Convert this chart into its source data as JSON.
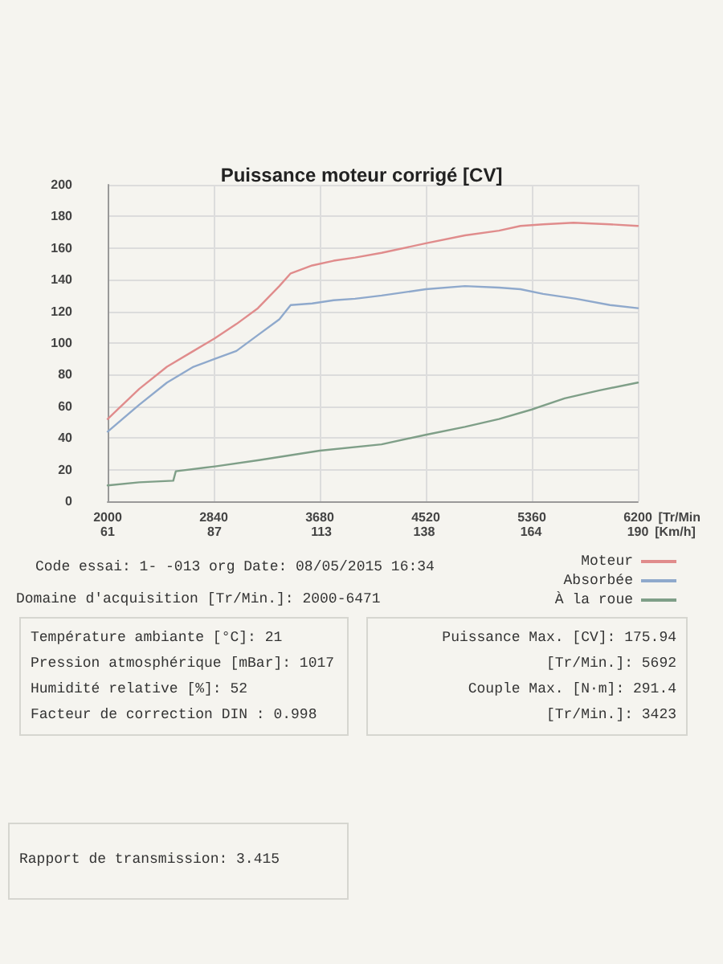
{
  "chart_data": {
    "type": "line",
    "title": "Puissance moteur corrigé [CV]",
    "xlabel": "[Tr/Min",
    "x2label": "[Km/h]",
    "xlim": [
      2000,
      6200
    ],
    "xticks": [
      2000,
      2840,
      3680,
      4520,
      5360,
      6200
    ],
    "x2lim": [
      61,
      190
    ],
    "x2ticks": [
      61,
      87,
      113,
      138,
      164,
      190
    ],
    "ylim": [
      0,
      200
    ],
    "yticks": [
      0,
      20,
      40,
      60,
      80,
      100,
      120,
      140,
      160,
      180,
      200
    ],
    "grid": true,
    "legend": "bottom right",
    "marker": "none",
    "line_style": "solid",
    "series": [
      {
        "name": "Moteur",
        "color": "#e08c8c",
        "x": [
          2000,
          2250,
          2470,
          2680,
          2850,
          3020,
          3190,
          3360,
          3450,
          3620,
          3790,
          3960,
          4170,
          4520,
          4830,
          5100,
          5270,
          5450,
          5690,
          5980,
          6200
        ],
        "values": [
          52,
          71,
          85,
          95,
          103,
          112,
          122,
          136,
          144,
          149,
          152,
          154,
          157,
          163,
          168,
          171,
          174,
          175,
          176,
          175,
          174
        ]
      },
      {
        "name": "Absorbée",
        "color": "#8fa9cc",
        "x": [
          2000,
          2250,
          2470,
          2680,
          2850,
          3020,
          3190,
          3360,
          3450,
          3620,
          3790,
          3960,
          4170,
          4520,
          4830,
          5100,
          5270,
          5450,
          5710,
          5980,
          6200
        ],
        "values": [
          44,
          61,
          75,
          85,
          90,
          95,
          105,
          115,
          124,
          125,
          127,
          128,
          130,
          134,
          136,
          135,
          134,
          131,
          128,
          124,
          122
        ]
      },
      {
        "name": "À la roue",
        "color": "#7f9f88",
        "x": [
          2000,
          2250,
          2520,
          2540,
          2850,
          3200,
          3680,
          4170,
          4520,
          4830,
          5100,
          5360,
          5620,
          5890,
          6200
        ],
        "values": [
          10,
          12,
          13,
          19,
          22,
          26,
          32,
          36,
          42,
          47,
          52,
          58,
          65,
          70,
          75
        ]
      }
    ],
    "annotations": [
      "Code essai: 1- -013 org Date: 08/05/2015 16:34",
      "Domaine d'acquisition [Tr/Min.]: 2000-6471",
      "Température ambiante [°C]: 21",
      "Pression atmosphérique [mBar]: 1017",
      "Humidité relative [%]: 52",
      "Facteur de correction DIN : 0.998",
      "Puissance Max. [CV]: 175.94",
      "[Tr/Min.]: 5692",
      "Couple Max. [N·m]: 291.4",
      "[Tr/Min.]: 3423",
      "Rapport de transmission: 3.415"
    ]
  }
}
